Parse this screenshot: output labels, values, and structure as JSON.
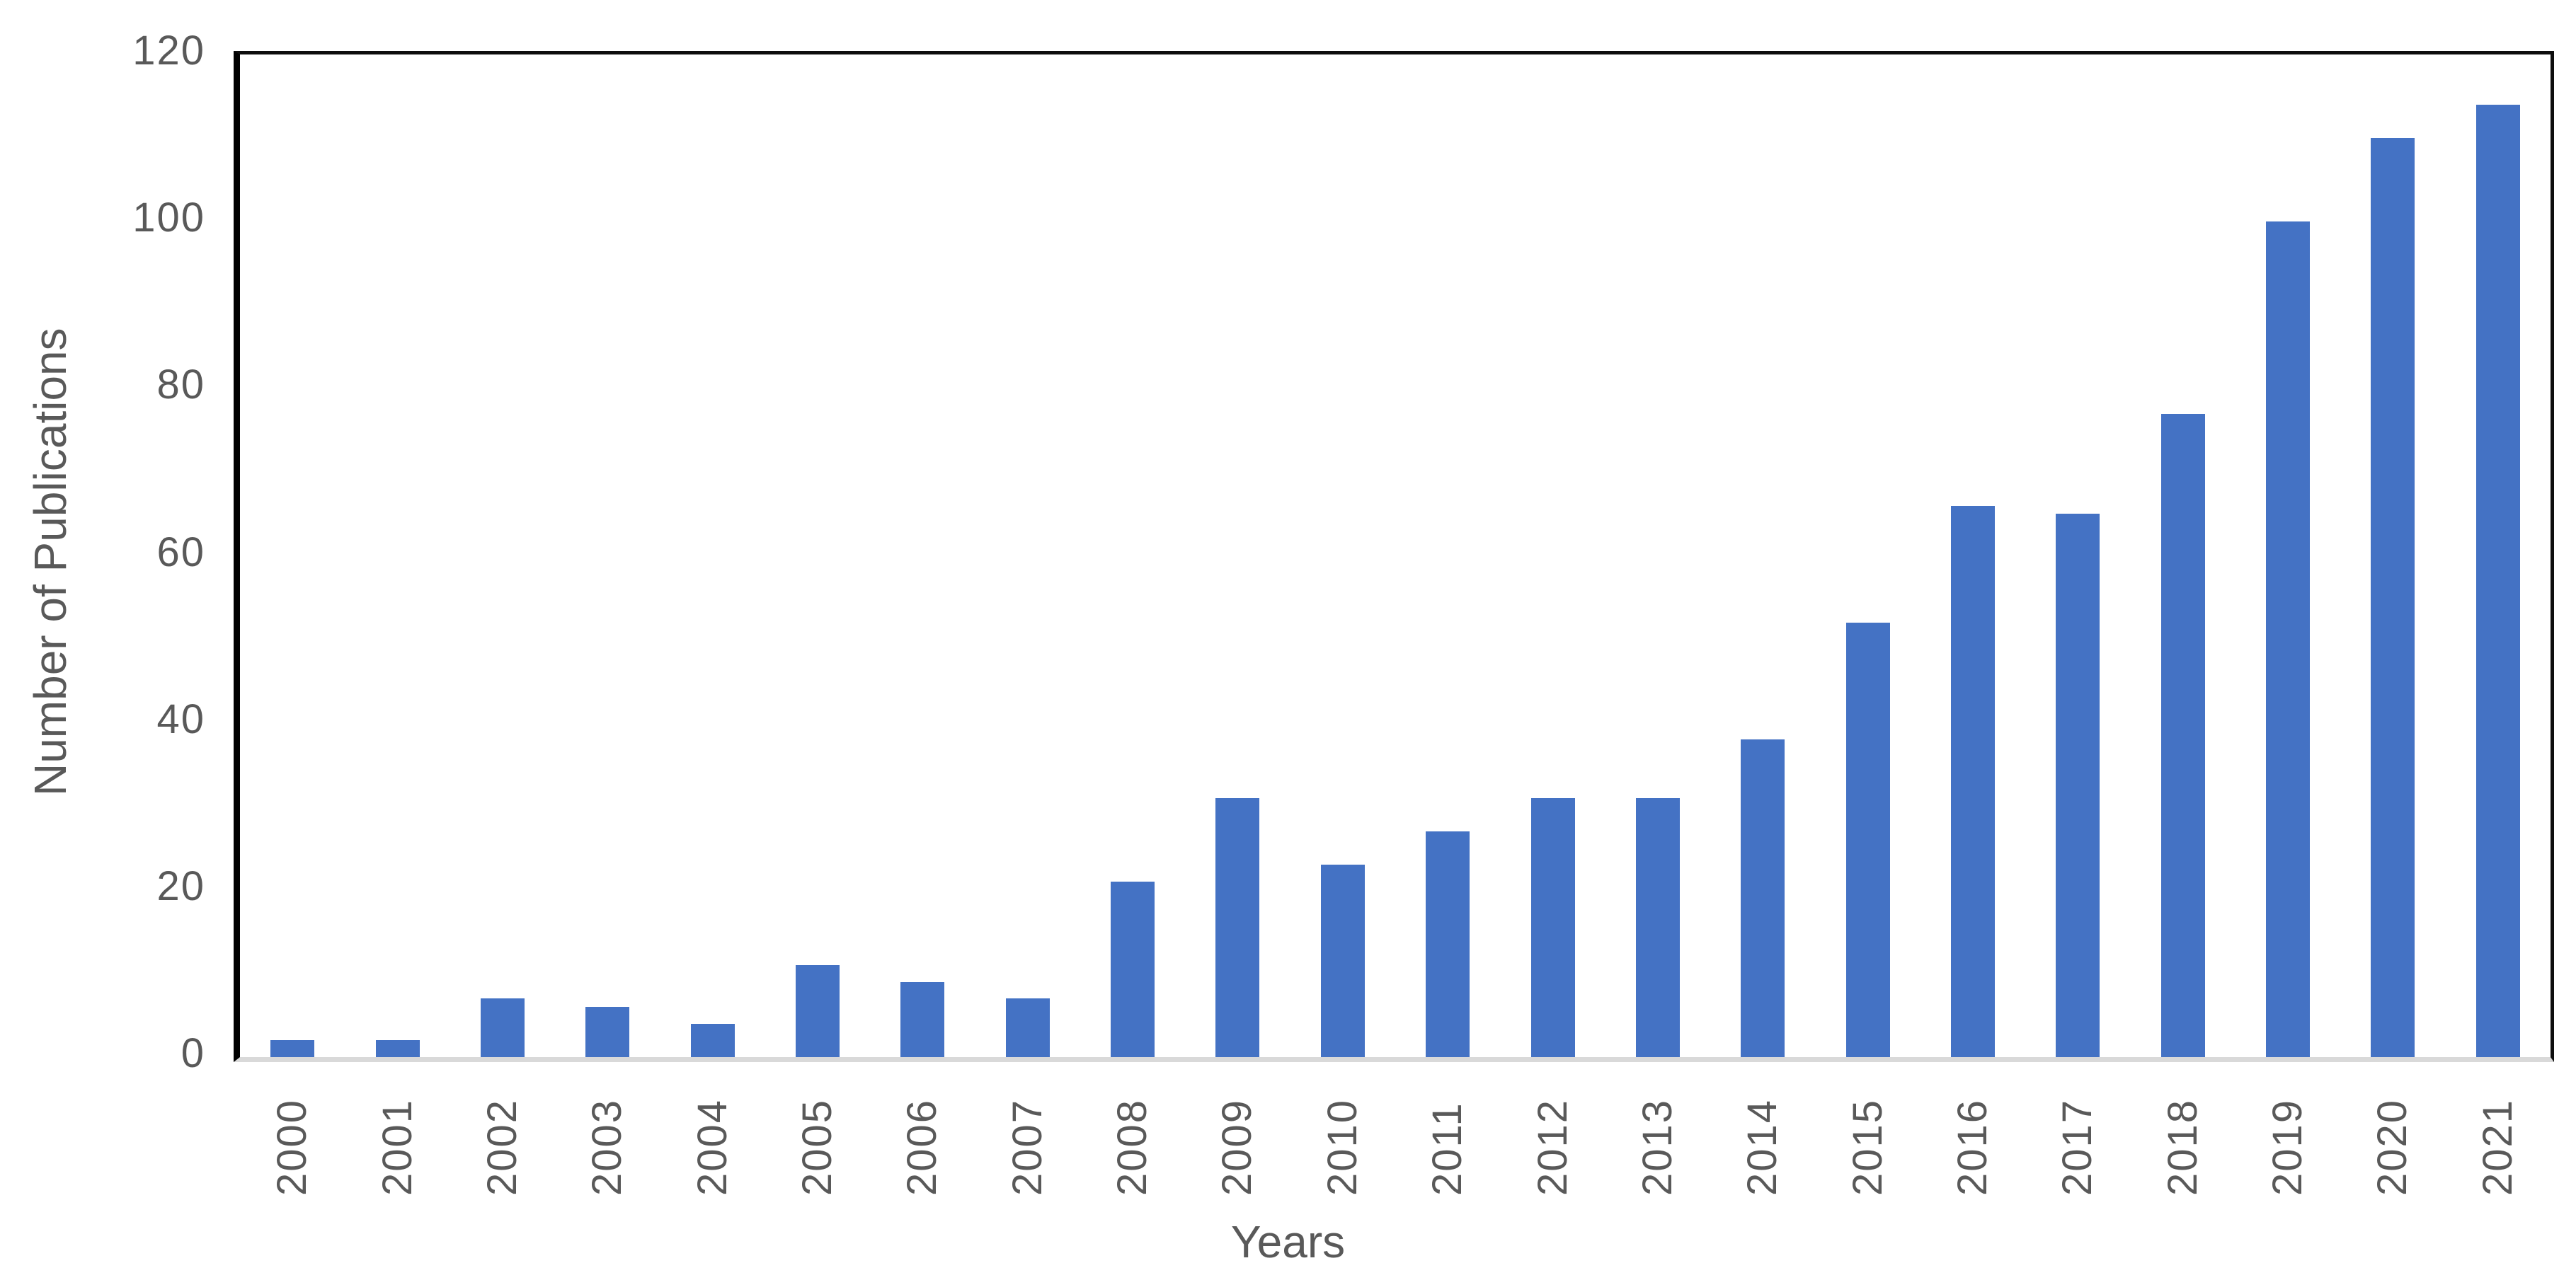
{
  "chart_data": {
    "type": "bar",
    "title": "",
    "xlabel": "Years",
    "ylabel": "Number of Publications",
    "categories": [
      "2000",
      "2001",
      "2002",
      "2003",
      "2004",
      "2005",
      "2006",
      "2007",
      "2008",
      "2009",
      "2010",
      "2011",
      "2012",
      "2013",
      "2014",
      "2015",
      "2016",
      "2017",
      "2018",
      "2019",
      "2020",
      "2021"
    ],
    "values": [
      2,
      2,
      7,
      6,
      4,
      11,
      9,
      7,
      21,
      31,
      23,
      27,
      31,
      31,
      38,
      52,
      66,
      65,
      77,
      100,
      110,
      114
    ],
    "ylim": [
      0,
      120
    ],
    "ytick_step": 20,
    "yticks": [
      0,
      20,
      40,
      60,
      80,
      100,
      120
    ],
    "grid": "off",
    "legend": "none",
    "colors": {
      "bar": "#4472c4",
      "text": "#595959",
      "axis_line": "#000000",
      "baseline": "#d9d9d9",
      "background": "#ffffff"
    }
  }
}
